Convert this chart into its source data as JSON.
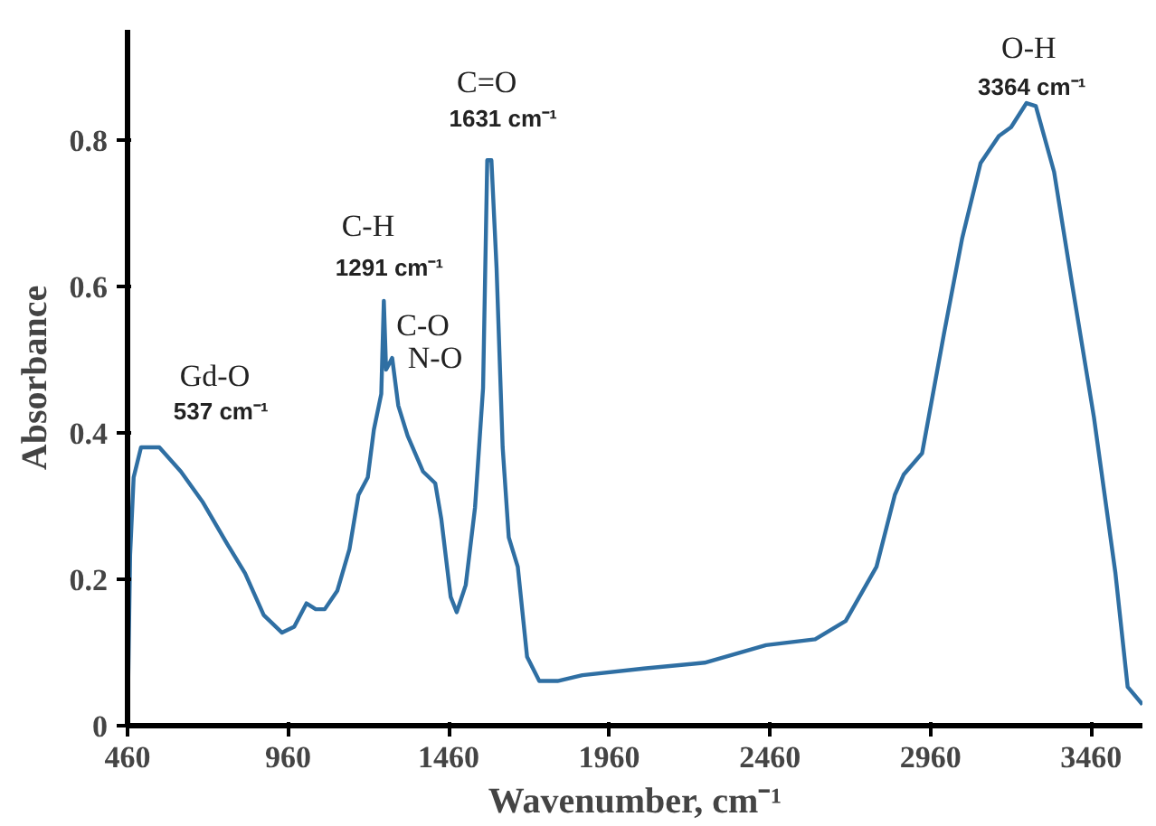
{
  "chart_data": {
    "type": "line",
    "xlabel": "Wavenumber, cm⁻¹",
    "ylabel": "Absorbance",
    "xlim": [
      460,
      3620
    ],
    "ylim": [
      0,
      0.95
    ],
    "xticks": [
      460,
      960,
      1460,
      1960,
      2460,
      2960,
      3460
    ],
    "yticks": [
      0,
      0.2,
      0.4,
      0.6,
      0.8
    ],
    "grid": false,
    "marker": "none",
    "line_style": "solid",
    "series": [
      {
        "color": "#2f6fa3",
        "x": [
          460,
          468,
          479,
          502,
          559,
          626,
          693,
          769,
          826,
          884,
          941,
          979,
          1017,
          1046,
          1074,
          1113,
          1151,
          1179,
          1208,
          1227,
          1250,
          1258,
          1265,
          1284,
          1303,
          1332,
          1380,
          1418,
          1437,
          1466,
          1485,
          1513,
          1542,
          1567,
          1580,
          1593,
          1609,
          1628,
          1647,
          1675,
          1704,
          1742,
          1799,
          1876,
          2067,
          2257,
          2448,
          2601,
          2696,
          2792,
          2849,
          2877,
          2934,
          3002,
          3059,
          3116,
          3173,
          3211,
          3259,
          3288,
          3345,
          3402,
          3469,
          3536,
          3574,
          3620
        ],
        "values": [
          0,
          0.233,
          0.339,
          0.38,
          0.38,
          0.347,
          0.306,
          0.249,
          0.208,
          0.151,
          0.127,
          0.135,
          0.167,
          0.159,
          0.159,
          0.184,
          0.241,
          0.315,
          0.339,
          0.404,
          0.453,
          0.58,
          0.486,
          0.502,
          0.437,
          0.396,
          0.347,
          0.331,
          0.282,
          0.176,
          0.155,
          0.192,
          0.298,
          0.461,
          0.772,
          0.772,
          0.625,
          0.38,
          0.257,
          0.217,
          0.094,
          0.061,
          0.061,
          0.069,
          0.078,
          0.086,
          0.11,
          0.118,
          0.143,
          0.217,
          0.315,
          0.343,
          0.372,
          0.535,
          0.666,
          0.768,
          0.805,
          0.817,
          0.85,
          0.846,
          0.756,
          0.6,
          0.421,
          0.208,
          0.053,
          0.029
        ]
      }
    ],
    "annotations": [
      "Gd-O",
      "537 cm⁻¹",
      "C-H",
      "1291 cm⁻¹",
      "C-O",
      "N-O",
      "C=O",
      "1631 cm⁻¹",
      "O-H",
      "3364 cm⁻¹"
    ]
  }
}
